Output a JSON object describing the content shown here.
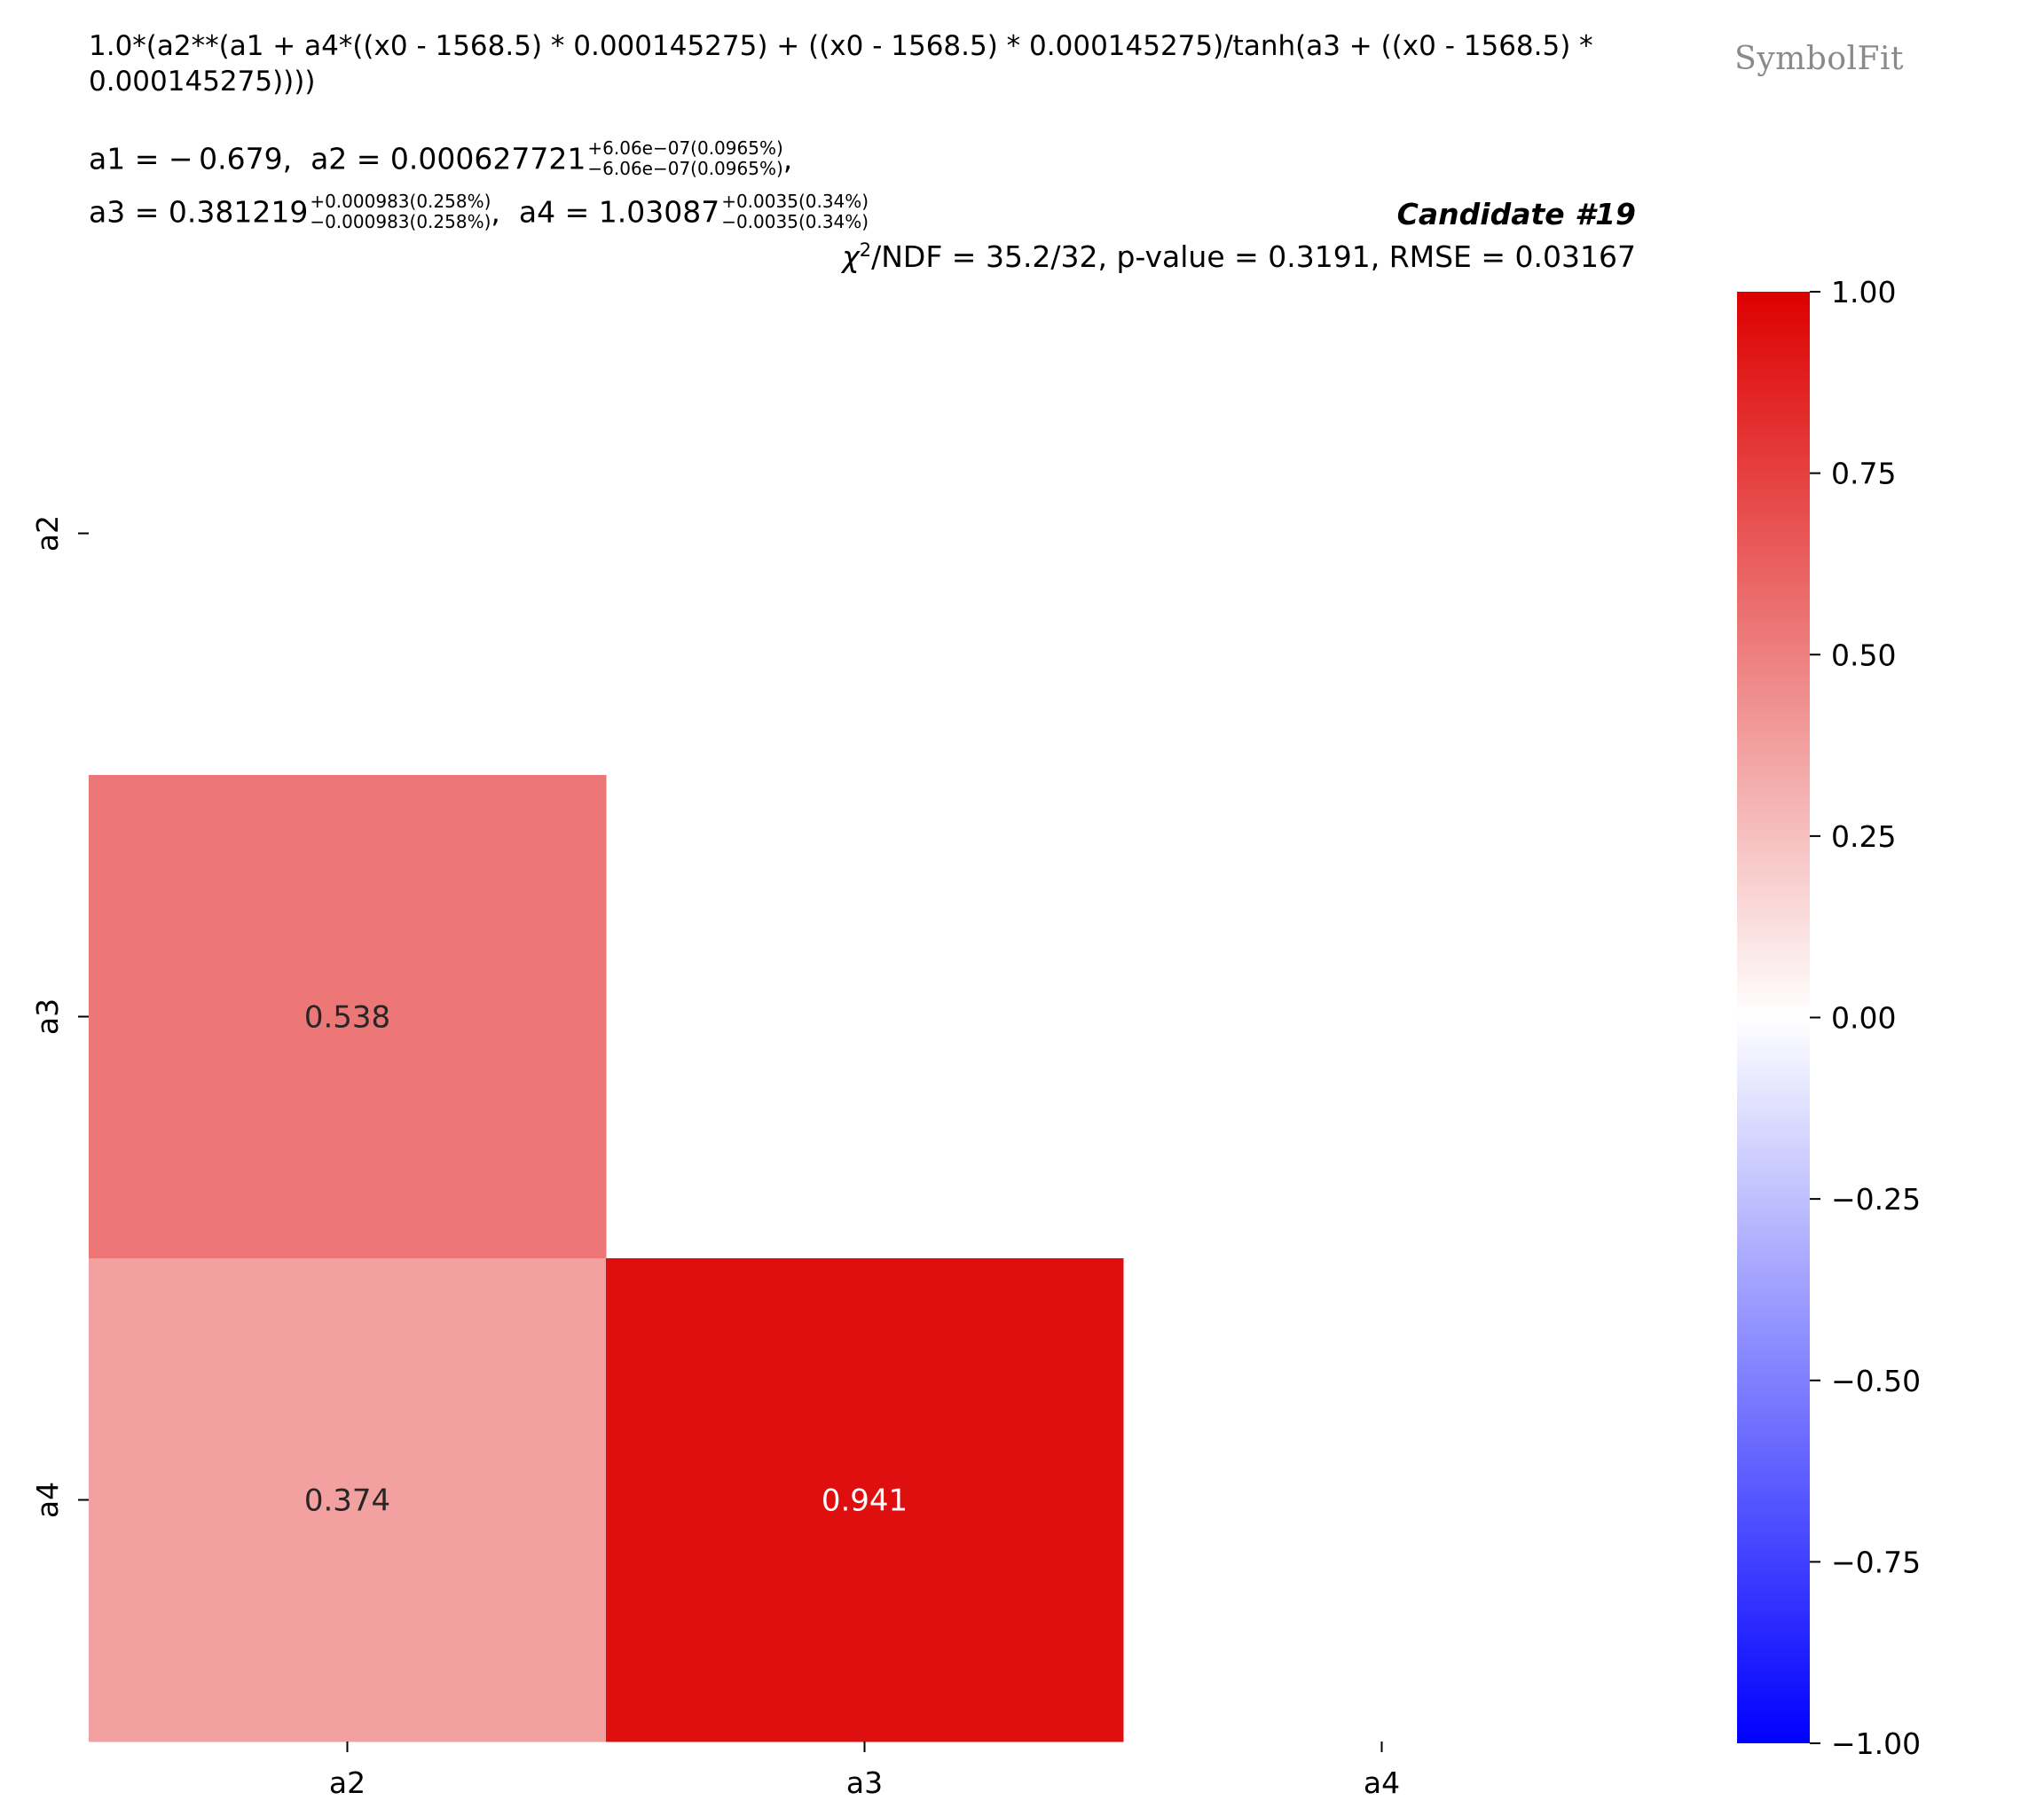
{
  "formula": "1.0*(a2**(a1 + a4*((x0 - 1568.5) * 0.000145275) + ((x0 - 1568.5) * 0.000145275)/tanh(a3 + ((x0 - 1568.5) * 0.000145275))))",
  "params": {
    "a1": {
      "label": "a1",
      "value": "− 0.679"
    },
    "a2": {
      "label": "a2",
      "value": "0.000627721",
      "plus": "+6.06e−07(0.0965%)",
      "minus": "−6.06e−07(0.0965%)"
    },
    "a3": {
      "label": "a3",
      "value": "0.381219",
      "plus": "+0.000983(0.258%)",
      "minus": "−0.000983(0.258%)"
    },
    "a4": {
      "label": "a4",
      "value": "1.03087",
      "plus": "+0.0035(0.34%)",
      "minus": "−0.0035(0.34%)"
    }
  },
  "brand": "SymbolFit",
  "candidate": "Candidate #19",
  "stats": {
    "chi_symbol": "χ",
    "chi_exp": "2",
    "text": "/NDF = 35.2/32, p-value = 0.3191, RMSE = 0.03167"
  },
  "chart_data": {
    "type": "heatmap",
    "x_labels": [
      "a2",
      "a3",
      "a4"
    ],
    "y_labels": [
      "a2",
      "a3",
      "a4"
    ],
    "cells": [
      {
        "row": "a3",
        "col": "a2",
        "value": 0.538,
        "label": "0.538"
      },
      {
        "row": "a4",
        "col": "a2",
        "value": 0.374,
        "label": "0.374"
      },
      {
        "row": "a4",
        "col": "a3",
        "value": 0.941,
        "label": "0.941"
      }
    ],
    "colorbar": {
      "range": [
        -1.0,
        1.0
      ],
      "ticks": [
        1.0,
        0.75,
        0.5,
        0.25,
        0.0,
        -0.25,
        -0.5,
        -0.75,
        -1.0
      ],
      "tick_labels": [
        "1.00",
        "0.75",
        "0.50",
        "0.25",
        "0.00",
        "−0.25",
        "−0.50",
        "−0.75",
        "−1.00"
      ],
      "colormap": "bwr",
      "low_color": "#0000ff",
      "mid_color": "#ffffff",
      "high_color": "#dd0000"
    }
  }
}
